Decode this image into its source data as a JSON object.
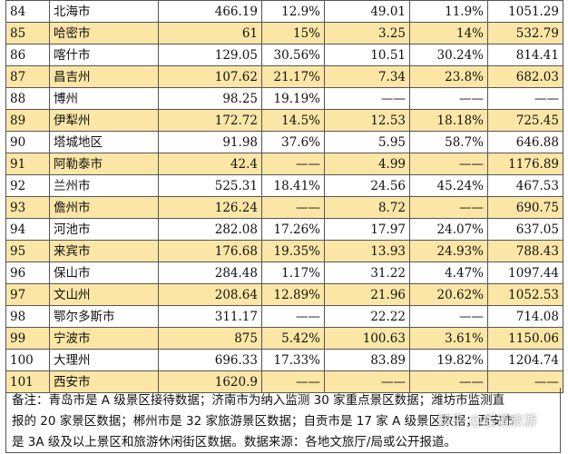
{
  "rows": [
    {
      "rank": "84",
      "city": "北海市",
      "v1": "466.19",
      "p1": "12.9%",
      "v2": "49.01",
      "p2": "11.9%",
      "v3": "1051.29"
    },
    {
      "rank": "85",
      "city": "哈密市",
      "v1": "61",
      "p1": "15%",
      "v2": "3.25",
      "p2": "14%",
      "v3": "532.79"
    },
    {
      "rank": "86",
      "city": "喀什市",
      "v1": "129.05",
      "p1": "30.56%",
      "v2": "10.51",
      "p2": "30.24%",
      "v3": "814.41"
    },
    {
      "rank": "87",
      "city": "昌吉州",
      "v1": "107.62",
      "p1": "21.17%",
      "v2": "7.34",
      "p2": "23.8%",
      "v3": "682.03"
    },
    {
      "rank": "88",
      "city": "博州",
      "v1": "98.25",
      "p1": "19.19%",
      "v2": "——",
      "p2": "——",
      "v3": "——"
    },
    {
      "rank": "89",
      "city": "伊犁州",
      "v1": "172.72",
      "p1": "14.5%",
      "v2": "12.53",
      "p2": "18.18%",
      "v3": "725.45"
    },
    {
      "rank": "90",
      "city": "塔城地区",
      "v1": "91.98",
      "p1": "37.6%",
      "v2": "5.95",
      "p2": "58.7%",
      "v3": "646.88"
    },
    {
      "rank": "91",
      "city": "阿勒泰市",
      "v1": "42.4",
      "p1": "——",
      "v2": "4.99",
      "p2": "——",
      "v3": "1176.89"
    },
    {
      "rank": "92",
      "city": "兰州市",
      "v1": "525.31",
      "p1": "18.41%",
      "v2": "24.56",
      "p2": "45.24%",
      "v3": "467.53"
    },
    {
      "rank": "93",
      "city": "儋州市",
      "v1": "126.24",
      "p1": "——",
      "v2": "8.72",
      "p2": "——",
      "v3": "690.75"
    },
    {
      "rank": "94",
      "city": "河池市",
      "v1": "282.08",
      "p1": "17.26%",
      "v2": "17.97",
      "p2": "24.07%",
      "v3": "637.05"
    },
    {
      "rank": "95",
      "city": "来宾市",
      "v1": "176.68",
      "p1": "19.35%",
      "v2": "13.93",
      "p2": "24.93%",
      "v3": "788.43"
    },
    {
      "rank": "96",
      "city": "保山市",
      "v1": "284.48",
      "p1": "1.17%",
      "v2": "31.22",
      "p2": "4.47%",
      "v3": "1097.44"
    },
    {
      "rank": "97",
      "city": "文山州",
      "v1": "208.64",
      "p1": "12.89%",
      "v2": "21.96",
      "p2": "20.62%",
      "v3": "1052.53"
    },
    {
      "rank": "98",
      "city": "鄂尔多斯市",
      "v1": "311.17",
      "p1": "——",
      "v2": "22.22",
      "p2": "——",
      "v3": "714.08"
    },
    {
      "rank": "99",
      "city": "宁波市",
      "v1": "875",
      "p1": "5.42%",
      "v2": "100.63",
      "p2": "3.61%",
      "v3": "1150.06"
    },
    {
      "rank": "100",
      "city": "大理州",
      "v1": "696.33",
      "p1": "17.33%",
      "v2": "83.89",
      "p2": "19.82%",
      "v3": "1204.74"
    },
    {
      "rank": "101",
      "city": "西安市",
      "v1": "1620.9",
      "p1": "——",
      "v2": "——",
      "p2": "——",
      "v3": "——"
    }
  ],
  "highlight_color": "#fce6a6",
  "note": {
    "line1": "备注：青岛市是 A 级景区接待数据；济南市为纳入监测 30 家重点景区数据；潍坊市监测直",
    "line2": "报的 20 家景区数据；郴州市是 32 家旅游景区数据；自贡市是 17 家 A 级景区数据；西安市",
    "line3": "是 3A 级及以上景区和旅游休闲街区数据。数据来源：各地文旅厅/局或公开报道。"
  },
  "watermark": "知乎 @后道旅游"
}
